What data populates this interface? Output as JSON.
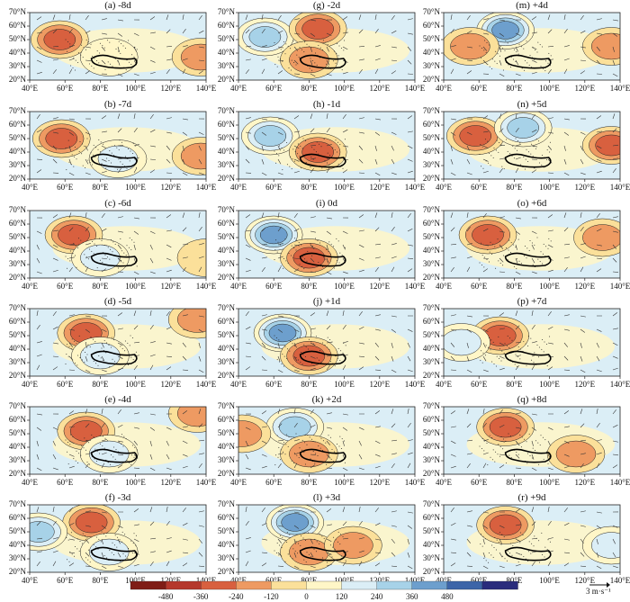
{
  "panels": [
    {
      "title": "(a) -8d"
    },
    {
      "title": "(g) -2d"
    },
    {
      "title": "(m) +4d"
    },
    {
      "title": "(b) -7d"
    },
    {
      "title": "(h) -1d"
    },
    {
      "title": "(n) +5d"
    },
    {
      "title": "(c) -6d"
    },
    {
      "title": "(i) 0d"
    },
    {
      "title": "(o) +6d"
    },
    {
      "title": "(d) -5d"
    },
    {
      "title": "(j) +1d"
    },
    {
      "title": "(p) +7d"
    },
    {
      "title": "(e) -4d"
    },
    {
      "title": "(k) +2d"
    },
    {
      "title": "(q) +8d"
    },
    {
      "title": "(f) -3d"
    },
    {
      "title": "(l) +3d"
    },
    {
      "title": "(r) +9d"
    }
  ],
  "axes": {
    "lat_labels": [
      "70°N",
      "60°N",
      "50°N",
      "40°N",
      "30°N",
      "20°N"
    ],
    "lon_labels": [
      "40°E",
      "60°E",
      "80°E",
      "100°E",
      "120°E",
      "140°E"
    ]
  },
  "colorbar": {
    "labels": [
      "-480",
      "-360",
      "-240",
      "-120",
      "0",
      "120",
      "240",
      "360",
      "480"
    ],
    "colors": [
      "#7f1d16",
      "#b5382c",
      "#d8603f",
      "#ee9a62",
      "#fbe09a",
      "#fff6c7",
      "#dbeef6",
      "#a7d2e8",
      "#6d9fcd",
      "#3d65a8",
      "#2a2c7c"
    ]
  },
  "reference_vector": {
    "label": "3 m·s⁻¹"
  },
  "chart_data": {
    "type": "heatmap",
    "description_units": "geopotential height anomaly with wind vectors",
    "x_range": [
      40,
      140
    ],
    "y_range": [
      20,
      70
    ],
    "levels": [
      -480,
      -360,
      -240,
      -120,
      0,
      120,
      240,
      360,
      480
    ],
    "panel_anomalies": [
      {
        "panel": "(a) -8d",
        "centers": [
          {
            "lon": 57,
            "lat": 50,
            "value": -360
          },
          {
            "lon": 85,
            "lat": 37,
            "value": 120
          },
          {
            "lon": 137,
            "lat": 37,
            "value": -240
          }
        ]
      },
      {
        "panel": "(g) -2d",
        "centers": [
          {
            "lon": 55,
            "lat": 52,
            "value": 360
          },
          {
            "lon": 85,
            "lat": 58,
            "value": -360
          },
          {
            "lon": 80,
            "lat": 35,
            "value": -240
          }
        ]
      },
      {
        "panel": "(m) +4d",
        "centers": [
          {
            "lon": 75,
            "lat": 57,
            "value": 480
          },
          {
            "lon": 55,
            "lat": 45,
            "value": -240
          },
          {
            "lon": 135,
            "lat": 45,
            "value": -240
          }
        ]
      },
      {
        "panel": "(b) -7d",
        "centers": [
          {
            "lon": 58,
            "lat": 50,
            "value": -360
          },
          {
            "lon": 90,
            "lat": 35,
            "value": 240
          },
          {
            "lon": 137,
            "lat": 37,
            "value": -240
          }
        ]
      },
      {
        "panel": "(h) -1d",
        "centers": [
          {
            "lon": 58,
            "lat": 52,
            "value": 360
          },
          {
            "lon": 85,
            "lat": 40,
            "value": -360
          }
        ]
      },
      {
        "panel": "(n) +5d",
        "centers": [
          {
            "lon": 58,
            "lat": 52,
            "value": -360
          },
          {
            "lon": 85,
            "lat": 58,
            "value": 360
          },
          {
            "lon": 135,
            "lat": 45,
            "value": -360
          }
        ]
      },
      {
        "panel": "(c) -6d",
        "centers": [
          {
            "lon": 65,
            "lat": 52,
            "value": -360
          },
          {
            "lon": 80,
            "lat": 35,
            "value": 240
          },
          {
            "lon": 140,
            "lat": 35,
            "value": -120
          }
        ]
      },
      {
        "panel": "(i) 0d",
        "centers": [
          {
            "lon": 60,
            "lat": 52,
            "value": 480
          },
          {
            "lon": 80,
            "lat": 35,
            "value": -360
          }
        ]
      },
      {
        "panel": "(o) +6d",
        "centers": [
          {
            "lon": 65,
            "lat": 52,
            "value": -360
          },
          {
            "lon": 130,
            "lat": 50,
            "value": -240
          }
        ]
      },
      {
        "panel": "(d) -5d",
        "centers": [
          {
            "lon": 72,
            "lat": 52,
            "value": -360
          },
          {
            "lon": 80,
            "lat": 35,
            "value": 240
          },
          {
            "lon": 135,
            "lat": 62,
            "value": -240
          }
        ]
      },
      {
        "panel": "(j) +1d",
        "centers": [
          {
            "lon": 65,
            "lat": 52,
            "value": 480
          },
          {
            "lon": 80,
            "lat": 35,
            "value": -360
          }
        ]
      },
      {
        "panel": "(p) +7d",
        "centers": [
          {
            "lon": 72,
            "lat": 50,
            "value": -360
          },
          {
            "lon": 50,
            "lat": 45,
            "value": 240
          }
        ]
      },
      {
        "panel": "(e) -4d",
        "centers": [
          {
            "lon": 72,
            "lat": 52,
            "value": -360
          },
          {
            "lon": 85,
            "lat": 35,
            "value": 240
          },
          {
            "lon": 135,
            "lat": 65,
            "value": -240
          }
        ]
      },
      {
        "panel": "(k) +2d",
        "centers": [
          {
            "lon": 72,
            "lat": 55,
            "value": 360
          },
          {
            "lon": 80,
            "lat": 35,
            "value": -240
          },
          {
            "lon": 42,
            "lat": 50,
            "value": -240
          }
        ]
      },
      {
        "panel": "(q) +8d",
        "centers": [
          {
            "lon": 75,
            "lat": 55,
            "value": -360
          },
          {
            "lon": 115,
            "lat": 35,
            "value": -240
          }
        ]
      },
      {
        "panel": "(f) -3d",
        "centers": [
          {
            "lon": 75,
            "lat": 57,
            "value": -360
          },
          {
            "lon": 45,
            "lat": 50,
            "value": 360
          },
          {
            "lon": 85,
            "lat": 35,
            "value": 240
          }
        ]
      },
      {
        "panel": "(l) +3d",
        "centers": [
          {
            "lon": 72,
            "lat": 57,
            "value": 480
          },
          {
            "lon": 80,
            "lat": 35,
            "value": -240
          },
          {
            "lon": 105,
            "lat": 40,
            "value": -240
          }
        ]
      },
      {
        "panel": "(r) +9d",
        "centers": [
          {
            "lon": 75,
            "lat": 55,
            "value": -360
          },
          {
            "lon": 135,
            "lat": 40,
            "value": 240
          }
        ]
      }
    ]
  }
}
